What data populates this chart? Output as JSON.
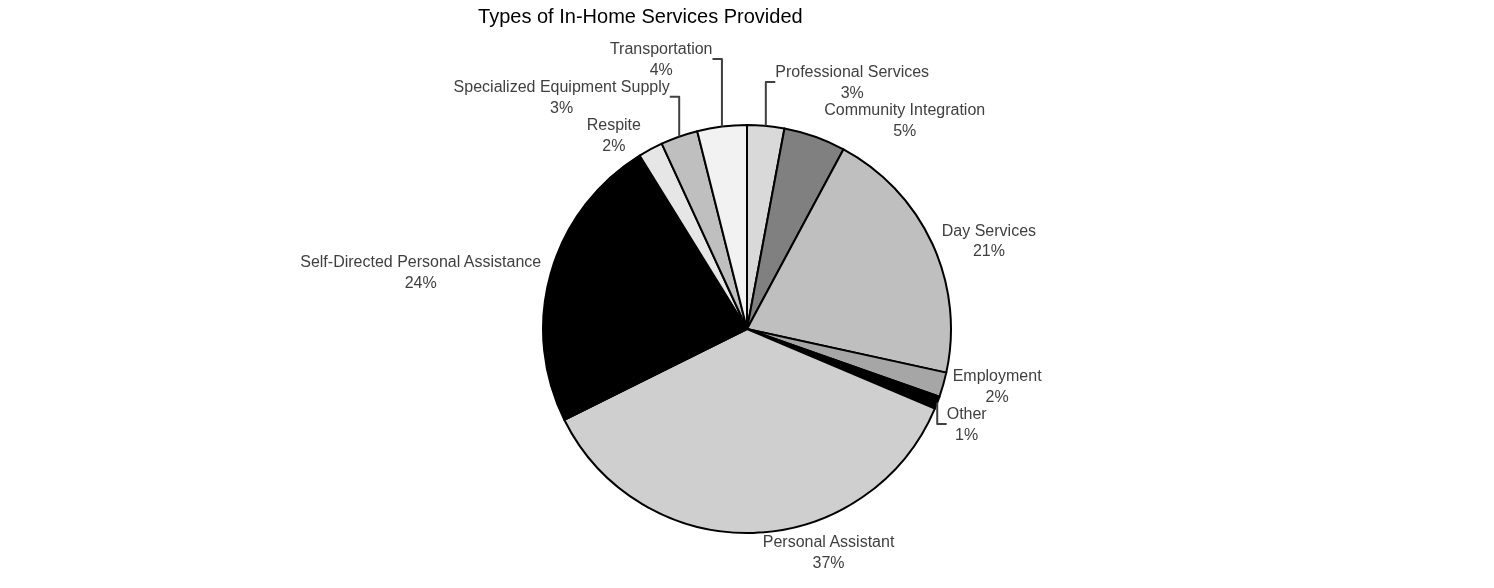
{
  "chart_data": {
    "type": "pie",
    "title": "Types of In-Home Services Provided",
    "categories": [
      "Professional Services",
      "Community Integration",
      "Day Services",
      "Employment",
      "Other",
      "Personal Assistant",
      "Self-Directed Personal Assistance",
      "Respite",
      "Specialized Equipment Supply",
      "Transportation"
    ],
    "values": [
      3,
      5,
      21,
      2,
      1,
      37,
      24,
      2,
      3,
      4
    ],
    "value_labels": [
      "3%",
      "5%",
      "21%",
      "2%",
      "1%",
      "37%",
      "24%",
      "2%",
      "3%",
      "4%"
    ],
    "colors": [
      "#d9d9d9",
      "#808080",
      "#bfbfbf",
      "#a6a6a6",
      "#000000",
      "#cfcfcf",
      "#000000",
      "#e6e6e6",
      "#bfbfbf",
      "#f2f2f2"
    ],
    "legend": false
  }
}
